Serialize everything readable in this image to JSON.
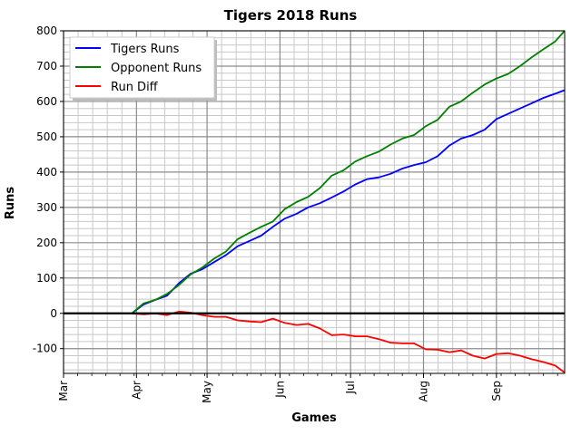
{
  "chart_data": {
    "type": "line",
    "title": "Tigers 2018 Runs",
    "xlabel": "Games",
    "ylabel": "Runs",
    "x_unit": "day of year",
    "xlim": [
      60,
      273
    ],
    "ylim": [
      -170,
      800
    ],
    "y_ticks": [
      -100,
      0,
      100,
      200,
      300,
      400,
      500,
      600,
      700,
      800
    ],
    "x_ticks": [
      {
        "label": "Mar",
        "day": 60
      },
      {
        "label": "Apr",
        "day": 91
      },
      {
        "label": "May",
        "day": 121
      },
      {
        "label": "Jun",
        "day": 152
      },
      {
        "label": "Jul",
        "day": 182
      },
      {
        "label": "Aug",
        "day": 213
      },
      {
        "label": "Sep",
        "day": 244
      }
    ],
    "grid": "on (major and minor)",
    "zero_line": true,
    "legend_position": "top-left",
    "x": [
      89,
      94,
      99,
      104,
      109,
      114,
      119,
      124,
      129,
      134,
      139,
      144,
      149,
      154,
      159,
      164,
      169,
      174,
      179,
      184,
      189,
      194,
      199,
      204,
      209,
      214,
      219,
      224,
      229,
      234,
      239,
      244,
      249,
      254,
      259,
      264,
      269,
      273
    ],
    "series": [
      {
        "name": "Tigers Runs",
        "color": "#0000ff",
        "values": [
          0,
          25,
          38,
          50,
          85,
          112,
          125,
          145,
          165,
          190,
          205,
          220,
          245,
          268,
          282,
          300,
          312,
          328,
          345,
          365,
          380,
          385,
          395,
          410,
          420,
          428,
          445,
          475,
          495,
          505,
          520,
          550,
          565,
          580,
          595,
          610,
          622,
          632
        ]
      },
      {
        "name": "Opponent Runs",
        "color": "#008000",
        "values": [
          0,
          28,
          38,
          55,
          80,
          110,
          130,
          155,
          175,
          210,
          228,
          245,
          260,
          295,
          315,
          330,
          355,
          390,
          405,
          430,
          445,
          458,
          478,
          495,
          505,
          530,
          548,
          585,
          600,
          625,
          648,
          665,
          678,
          700,
          725,
          748,
          770,
          800
        ]
      },
      {
        "name": "Run Diff",
        "color": "#ff0000",
        "values": [
          0,
          -3,
          0,
          -5,
          5,
          2,
          -5,
          -10,
          -10,
          -20,
          -23,
          -25,
          -15,
          -27,
          -33,
          -30,
          -43,
          -62,
          -60,
          -65,
          -65,
          -73,
          -83,
          -85,
          -85,
          -102,
          -103,
          -110,
          -105,
          -120,
          -128,
          -115,
          -113,
          -120,
          -130,
          -138,
          -148,
          -168
        ]
      }
    ]
  }
}
